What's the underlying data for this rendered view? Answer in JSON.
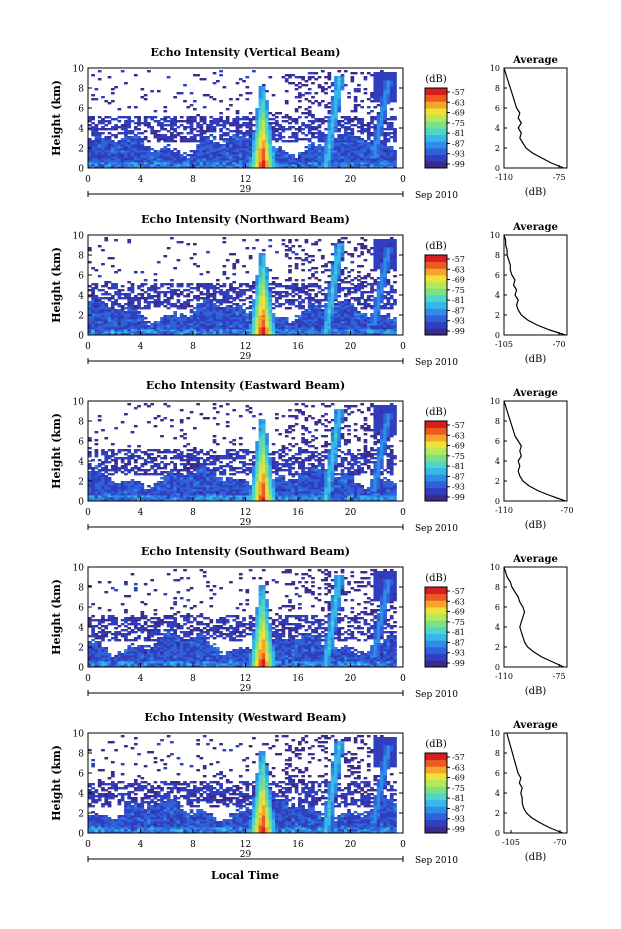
{
  "chart_data": [
    {
      "type": "heatmap",
      "title": "Echo Intensity (Vertical Beam)",
      "ylabel": "Height (km)",
      "ylim": [
        0,
        10
      ],
      "yticks": [
        "0",
        "2",
        "4",
        "6",
        "8",
        "10"
      ],
      "xlim": [
        0,
        24
      ],
      "xticks": [
        "0",
        "4",
        "8",
        "12",
        "16",
        "20",
        "0"
      ],
      "date_label": "29",
      "month_label": "Sep 2010",
      "colorbar_unit": "(dB)",
      "colorbar_ticks": [
        "-57",
        "-63",
        "-69",
        "-75",
        "-81",
        "-87",
        "-93",
        "-99"
      ],
      "profile_title": "Average",
      "profile_xlabel": "(dB)",
      "profile_xticks": [
        "-110",
        "-75"
      ],
      "profile_xlim": [
        -110,
        -70
      ],
      "profile": [
        [
          0,
          -72
        ],
        [
          0.5,
          -80
        ],
        [
          1,
          -86
        ],
        [
          1.5,
          -92
        ],
        [
          2,
          -96
        ],
        [
          2.5,
          -98
        ],
        [
          3,
          -100
        ],
        [
          3.5,
          -99
        ],
        [
          4,
          -101
        ],
        [
          4.5,
          -99
        ],
        [
          5,
          -101
        ],
        [
          5.5,
          -100
        ],
        [
          6,
          -102
        ],
        [
          6.5,
          -103
        ],
        [
          7,
          -104
        ],
        [
          7.5,
          -105
        ],
        [
          8,
          -106
        ],
        [
          8.5,
          -107
        ],
        [
          9,
          -108
        ],
        [
          9.5,
          -109
        ],
        [
          10,
          -110
        ]
      ]
    },
    {
      "type": "heatmap",
      "title": "Echo Intensity (Northward Beam)",
      "ylabel": "Height (km)",
      "ylim": [
        0,
        10
      ],
      "yticks": [
        "0",
        "2",
        "4",
        "6",
        "8",
        "10"
      ],
      "xlim": [
        0,
        24
      ],
      "xticks": [
        "0",
        "4",
        "8",
        "12",
        "16",
        "20",
        "0"
      ],
      "date_label": "29",
      "month_label": "Sep 2010",
      "colorbar_unit": "(dB)",
      "colorbar_ticks": [
        "-57",
        "-63",
        "-69",
        "-75",
        "-81",
        "-87",
        "-93",
        "-99"
      ],
      "profile_title": "Average",
      "profile_xlabel": "(dB)",
      "profile_xticks": [
        "-105",
        "-70"
      ],
      "profile_xlim": [
        -105,
        -65
      ],
      "profile": [
        [
          0,
          -66
        ],
        [
          0.5,
          -76
        ],
        [
          1,
          -84
        ],
        [
          1.5,
          -90
        ],
        [
          2,
          -94
        ],
        [
          2.5,
          -96
        ],
        [
          3,
          -97
        ],
        [
          3.5,
          -96
        ],
        [
          4,
          -98
        ],
        [
          4.5,
          -97
        ],
        [
          5,
          -99
        ],
        [
          5.5,
          -98
        ],
        [
          6,
          -100
        ],
        [
          6.5,
          -101
        ],
        [
          7,
          -101
        ],
        [
          7.5,
          -102
        ],
        [
          8,
          -103
        ],
        [
          8.5,
          -103
        ],
        [
          9,
          -104
        ],
        [
          9.5,
          -104
        ],
        [
          10,
          -105
        ]
      ]
    },
    {
      "type": "heatmap",
      "title": "Echo Intensity (Eastward Beam)",
      "ylabel": "Height (km)",
      "ylim": [
        0,
        10
      ],
      "yticks": [
        "0",
        "2",
        "4",
        "6",
        "8",
        "10"
      ],
      "xlim": [
        0,
        24
      ],
      "xticks": [
        "0",
        "4",
        "8",
        "12",
        "16",
        "20",
        "0"
      ],
      "date_label": "29",
      "month_label": "Sep 2010",
      "colorbar_unit": "(dB)",
      "colorbar_ticks": [
        "-57",
        "-63",
        "-69",
        "-75",
        "-81",
        "-87",
        "-93",
        "-99"
      ],
      "profile_title": "Average",
      "profile_xlabel": "(dB)",
      "profile_xticks": [
        "-110",
        "-70"
      ],
      "profile_xlim": [
        -110,
        -70
      ],
      "profile": [
        [
          0,
          -71
        ],
        [
          0.5,
          -80
        ],
        [
          1,
          -88
        ],
        [
          1.5,
          -94
        ],
        [
          2,
          -98
        ],
        [
          2.5,
          -100
        ],
        [
          3,
          -101
        ],
        [
          3.5,
          -100
        ],
        [
          4,
          -101
        ],
        [
          4.5,
          -99
        ],
        [
          5,
          -100
        ],
        [
          5.5,
          -99
        ],
        [
          6,
          -101
        ],
        [
          6.5,
          -103
        ],
        [
          7,
          -104
        ],
        [
          7.5,
          -105
        ],
        [
          8,
          -106
        ],
        [
          8.5,
          -107
        ],
        [
          9,
          -108
        ],
        [
          9.5,
          -109
        ],
        [
          10,
          -110
        ]
      ]
    },
    {
      "type": "heatmap",
      "title": "Echo Intensity (Southward Beam)",
      "ylabel": "Height (km)",
      "ylim": [
        0,
        10
      ],
      "yticks": [
        "0",
        "2",
        "4",
        "6",
        "8",
        "10"
      ],
      "xlim": [
        0,
        24
      ],
      "xticks": [
        "0",
        "4",
        "8",
        "12",
        "16",
        "20",
        "0"
      ],
      "date_label": "29",
      "month_label": "Sep 2010",
      "colorbar_unit": "(dB)",
      "colorbar_ticks": [
        "-57",
        "-63",
        "-69",
        "-75",
        "-81",
        "-87",
        "-93",
        "-99"
      ],
      "profile_title": "Average",
      "profile_xlabel": "(dB)",
      "profile_xticks": [
        "-110",
        "-75"
      ],
      "profile_xlim": [
        -110,
        -70
      ],
      "profile": [
        [
          0,
          -72
        ],
        [
          0.5,
          -79
        ],
        [
          1,
          -86
        ],
        [
          1.5,
          -91
        ],
        [
          2,
          -95
        ],
        [
          2.5,
          -97
        ],
        [
          3,
          -98
        ],
        [
          3.5,
          -99
        ],
        [
          4,
          -100
        ],
        [
          4.5,
          -99
        ],
        [
          5,
          -98
        ],
        [
          5.5,
          -97
        ],
        [
          6,
          -98
        ],
        [
          6.5,
          -100
        ],
        [
          7,
          -101
        ],
        [
          7.5,
          -103
        ],
        [
          8,
          -105
        ],
        [
          8.5,
          -106
        ],
        [
          9,
          -108
        ],
        [
          9.5,
          -109
        ],
        [
          10,
          -110
        ]
      ]
    },
    {
      "type": "heatmap",
      "title": "Echo Intensity (Westward Beam)",
      "ylabel": "Height (km)",
      "ylim": [
        0,
        10
      ],
      "yticks": [
        "0",
        "2",
        "4",
        "6",
        "8",
        "10"
      ],
      "xlim": [
        0,
        24
      ],
      "xticks": [
        "0",
        "4",
        "8",
        "12",
        "16",
        "20",
        "0"
      ],
      "date_label": "29",
      "month_label": "Sep 2010",
      "colorbar_unit": "(dB)",
      "colorbar_ticks": [
        "-57",
        "-63",
        "-69",
        "-75",
        "-81",
        "-87",
        "-93",
        "-99"
      ],
      "profile_title": "Average",
      "profile_xlabel": "(dB)",
      "profile_xticks": [
        "-105",
        "-70"
      ],
      "profile_xlim": [
        -110,
        -65
      ],
      "profile": [
        [
          0,
          -68
        ],
        [
          0.5,
          -77
        ],
        [
          1,
          -84
        ],
        [
          1.5,
          -90
        ],
        [
          2,
          -94
        ],
        [
          2.5,
          -96
        ],
        [
          3,
          -97
        ],
        [
          3.5,
          -97
        ],
        [
          4,
          -98
        ],
        [
          4.5,
          -97
        ],
        [
          5,
          -99
        ],
        [
          5.5,
          -98
        ],
        [
          6,
          -100
        ],
        [
          6.5,
          -101
        ],
        [
          7,
          -102
        ],
        [
          7.5,
          -103
        ],
        [
          8,
          -104
        ],
        [
          8.5,
          -105
        ],
        [
          9,
          -106
        ],
        [
          9.5,
          -107
        ],
        [
          10,
          -108
        ]
      ]
    }
  ],
  "xaxis_label": "Local Time",
  "colormap": [
    "#3a2a8c",
    "#2f3fbf",
    "#2f62d8",
    "#2f8ce8",
    "#35b8e8",
    "#4fd6c8",
    "#7ae08a",
    "#b6e85a",
    "#f0e03a",
    "#f5a52a",
    "#ee5a22",
    "#d81f1f"
  ]
}
